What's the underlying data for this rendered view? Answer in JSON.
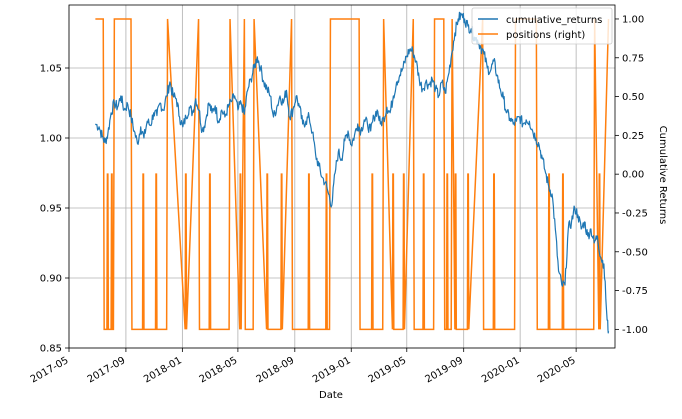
{
  "chart_data": {
    "type": "line",
    "title": "",
    "xlabel": "Date",
    "ylabel_left": "",
    "ylabel_right": "Cumulative Returns",
    "x_ticks": [
      "2017-05",
      "2017-09",
      "2018-01",
      "2018-05",
      "2018-09",
      "2019-01",
      "2019-05",
      "2019-09",
      "2020-01",
      "2020-05"
    ],
    "xlim": [
      "2017-05-01",
      "2020-07-24"
    ],
    "ylim_left": [
      0.85,
      1.095
    ],
    "ylim_right": [
      -1.12,
      1.09
    ],
    "y_ticks_left": [
      "0.85",
      "0.90",
      "0.95",
      "1.00",
      "1.05"
    ],
    "y_ticks_right": [
      "-1.00",
      "-0.75",
      "-0.50",
      "-0.25",
      "0.00",
      "0.25",
      "0.50",
      "0.75",
      "1.00"
    ],
    "grid": true,
    "legend_position": "top-right",
    "colors": {
      "cumulative_returns": "#1f77b4",
      "positions": "#ff7f0e",
      "grid": "#b0b0b0"
    },
    "series": [
      {
        "name": "cumulative_returns",
        "axis": "left",
        "points": [
          [
            "2017-06-27",
            1.01
          ],
          [
            "2017-07-05",
            1.008
          ],
          [
            "2017-07-12",
            1.001
          ],
          [
            "2017-07-18",
            0.997
          ],
          [
            "2017-07-24",
            1.003
          ],
          [
            "2017-07-31",
            1.018
          ],
          [
            "2017-08-07",
            1.025
          ],
          [
            "2017-08-14",
            1.022
          ],
          [
            "2017-08-21",
            1.03
          ],
          [
            "2017-08-28",
            1.02
          ],
          [
            "2017-09-05",
            1.024
          ],
          [
            "2017-09-12",
            1.015
          ],
          [
            "2017-09-19",
            1.005
          ],
          [
            "2017-09-26",
            0.996
          ],
          [
            "2017-10-03",
            1.008
          ],
          [
            "2017-10-10",
            1.0
          ],
          [
            "2017-10-17",
            1.012
          ],
          [
            "2017-10-24",
            1.009
          ],
          [
            "2017-10-31",
            1.018
          ],
          [
            "2017-11-07",
            1.016
          ],
          [
            "2017-11-14",
            1.025
          ],
          [
            "2017-11-21",
            1.02
          ],
          [
            "2017-11-28",
            1.03
          ],
          [
            "2017-12-05",
            1.04
          ],
          [
            "2017-12-12",
            1.03
          ],
          [
            "2017-12-19",
            1.028
          ],
          [
            "2017-12-26",
            1.015
          ],
          [
            "2018-01-02",
            1.008
          ],
          [
            "2018-01-09",
            1.015
          ],
          [
            "2018-01-16",
            1.022
          ],
          [
            "2018-01-23",
            1.018
          ],
          [
            "2018-01-30",
            1.028
          ],
          [
            "2018-02-06",
            1.02
          ],
          [
            "2018-02-13",
            1.005
          ],
          [
            "2018-02-20",
            1.012
          ],
          [
            "2018-02-27",
            1.025
          ],
          [
            "2018-03-06",
            1.018
          ],
          [
            "2018-03-13",
            1.023
          ],
          [
            "2018-03-20",
            1.012
          ],
          [
            "2018-03-27",
            1.02
          ],
          [
            "2018-04-03",
            1.015
          ],
          [
            "2018-04-10",
            1.022
          ],
          [
            "2018-04-17",
            1.026
          ],
          [
            "2018-04-24",
            1.03
          ],
          [
            "2018-05-01",
            1.02
          ],
          [
            "2018-05-08",
            1.025
          ],
          [
            "2018-05-15",
            1.017
          ],
          [
            "2018-05-22",
            1.034
          ],
          [
            "2018-05-29",
            1.042
          ],
          [
            "2018-06-05",
            1.05
          ],
          [
            "2018-06-12",
            1.058
          ],
          [
            "2018-06-19",
            1.05
          ],
          [
            "2018-06-26",
            1.04
          ],
          [
            "2018-07-03",
            1.035
          ],
          [
            "2018-07-10",
            1.03
          ],
          [
            "2018-07-17",
            1.015
          ],
          [
            "2018-07-24",
            1.022
          ],
          [
            "2018-07-31",
            1.03
          ],
          [
            "2018-08-07",
            1.025
          ],
          [
            "2018-08-14",
            1.034
          ],
          [
            "2018-08-21",
            1.015
          ],
          [
            "2018-08-28",
            1.02
          ],
          [
            "2018-09-04",
            1.03
          ],
          [
            "2018-09-11",
            1.022
          ],
          [
            "2018-09-18",
            1.01
          ],
          [
            "2018-09-25",
            1.012
          ],
          [
            "2018-10-02",
            1.015
          ],
          [
            "2018-10-09",
            1.004
          ],
          [
            "2018-10-16",
            0.988
          ],
          [
            "2018-10-23",
            0.98
          ],
          [
            "2018-10-30",
            0.972
          ],
          [
            "2018-11-06",
            0.968
          ],
          [
            "2018-11-13",
            0.96
          ],
          [
            "2018-11-20",
            0.952
          ],
          [
            "2018-11-27",
            0.975
          ],
          [
            "2018-12-04",
            0.99
          ],
          [
            "2018-12-11",
            0.985
          ],
          [
            "2018-12-18",
            0.998
          ],
          [
            "2018-12-25",
            1.005
          ],
          [
            "2019-01-01",
            0.995
          ],
          [
            "2019-01-08",
            1.002
          ],
          [
            "2019-01-15",
            1.01
          ],
          [
            "2019-01-22",
            1.005
          ],
          [
            "2019-01-29",
            1.013
          ],
          [
            "2019-02-05",
            1.01
          ],
          [
            "2019-02-12",
            1.005
          ],
          [
            "2019-02-19",
            1.015
          ],
          [
            "2019-02-26",
            1.02
          ],
          [
            "2019-03-05",
            1.01
          ],
          [
            "2019-03-12",
            1.014
          ],
          [
            "2019-03-19",
            1.022
          ],
          [
            "2019-03-26",
            1.018
          ],
          [
            "2019-04-02",
            1.03
          ],
          [
            "2019-04-09",
            1.04
          ],
          [
            "2019-04-16",
            1.045
          ],
          [
            "2019-04-23",
            1.05
          ],
          [
            "2019-04-30",
            1.058
          ],
          [
            "2019-05-07",
            1.063
          ],
          [
            "2019-05-14",
            1.062
          ],
          [
            "2019-05-21",
            1.055
          ],
          [
            "2019-05-28",
            1.042
          ],
          [
            "2019-06-04",
            1.035
          ],
          [
            "2019-06-11",
            1.04
          ],
          [
            "2019-06-18",
            1.038
          ],
          [
            "2019-06-25",
            1.042
          ],
          [
            "2019-07-02",
            1.035
          ],
          [
            "2019-07-09",
            1.03
          ],
          [
            "2019-07-16",
            1.04
          ],
          [
            "2019-07-23",
            1.032
          ],
          [
            "2019-07-30",
            1.045
          ],
          [
            "2019-08-06",
            1.06
          ],
          [
            "2019-08-13",
            1.075
          ],
          [
            "2019-08-20",
            1.085
          ],
          [
            "2019-08-27",
            1.088
          ],
          [
            "2019-09-03",
            1.085
          ],
          [
            "2019-09-10",
            1.08
          ],
          [
            "2019-09-17",
            1.078
          ],
          [
            "2019-09-24",
            1.072
          ],
          [
            "2019-10-01",
            1.07
          ],
          [
            "2019-10-08",
            1.065
          ],
          [
            "2019-10-15",
            1.06
          ],
          [
            "2019-10-22",
            1.05
          ],
          [
            "2019-10-29",
            1.048
          ],
          [
            "2019-11-05",
            1.055
          ],
          [
            "2019-11-12",
            1.045
          ],
          [
            "2019-11-19",
            1.035
          ],
          [
            "2019-11-26",
            1.028
          ],
          [
            "2019-12-03",
            1.018
          ],
          [
            "2019-12-10",
            1.014
          ],
          [
            "2019-12-17",
            1.01
          ],
          [
            "2019-12-24",
            1.012
          ],
          [
            "2019-12-31",
            1.015
          ],
          [
            "2020-01-07",
            1.01
          ],
          [
            "2020-01-14",
            1.013
          ],
          [
            "2020-01-21",
            1.012
          ],
          [
            "2020-01-28",
            1.005
          ],
          [
            "2020-02-04",
            1.0
          ],
          [
            "2020-02-11",
            0.995
          ],
          [
            "2020-02-18",
            0.985
          ],
          [
            "2020-02-25",
            0.975
          ],
          [
            "2020-03-03",
            0.965
          ],
          [
            "2020-03-10",
            0.96
          ],
          [
            "2020-03-17",
            0.935
          ],
          [
            "2020-03-24",
            0.905
          ],
          [
            "2020-03-31",
            0.895
          ],
          [
            "2020-04-07",
            0.895
          ],
          [
            "2020-04-14",
            0.935
          ],
          [
            "2020-04-21",
            0.94
          ],
          [
            "2020-04-28",
            0.95
          ],
          [
            "2020-05-05",
            0.945
          ],
          [
            "2020-05-12",
            0.935
          ],
          [
            "2020-05-19",
            0.94
          ],
          [
            "2020-05-26",
            0.93
          ],
          [
            "2020-06-02",
            0.935
          ],
          [
            "2020-06-09",
            0.925
          ],
          [
            "2020-06-16",
            0.93
          ],
          [
            "2020-06-23",
            0.915
          ],
          [
            "2020-06-30",
            0.91
          ],
          [
            "2020-07-07",
            0.87
          ],
          [
            "2020-07-10",
            0.862
          ]
        ]
      },
      {
        "name": "positions (right)",
        "axis": "right",
        "points": [
          [
            "2017-06-27",
            1
          ],
          [
            "2017-07-14",
            1
          ],
          [
            "2017-07-16",
            -1
          ],
          [
            "2017-08-05",
            -1
          ],
          [
            "2017-08-07",
            1
          ],
          [
            "2017-09-12",
            1
          ],
          [
            "2017-09-14",
            -1
          ],
          [
            "2017-11-28",
            -1
          ],
          [
            "2017-11-30",
            1
          ],
          [
            "2018-02-05",
            1
          ],
          [
            "2018-02-07",
            -1
          ],
          [
            "2018-04-12",
            -1
          ],
          [
            "2018-04-14",
            1
          ],
          [
            "2018-05-15",
            1
          ],
          [
            "2018-05-17",
            -1
          ],
          [
            "2018-06-03",
            -1
          ],
          [
            "2018-06-05",
            1
          ],
          [
            "2018-08-25",
            1
          ],
          [
            "2018-08-27",
            -1
          ],
          [
            "2018-11-15",
            -1
          ],
          [
            "2018-11-17",
            1
          ],
          [
            "2019-01-18",
            1
          ],
          [
            "2019-01-20",
            -1
          ],
          [
            "2019-03-10",
            -1
          ],
          [
            "2019-03-12",
            1
          ],
          [
            "2019-05-15",
            1
          ],
          [
            "2019-05-17",
            -1
          ],
          [
            "2019-06-28",
            -1
          ],
          [
            "2019-06-30",
            1
          ],
          [
            "2019-07-20",
            1
          ],
          [
            "2019-07-22",
            -1
          ],
          [
            "2019-08-05",
            -1
          ],
          [
            "2019-08-07",
            1
          ],
          [
            "2019-10-12",
            1
          ],
          [
            "2019-10-14",
            -1
          ],
          [
            "2019-12-20",
            -1
          ],
          [
            "2019-12-22",
            1
          ],
          [
            "2020-02-05",
            1
          ],
          [
            "2020-02-07",
            -1
          ],
          [
            "2020-06-08",
            -1
          ],
          [
            "2020-06-10",
            1
          ],
          [
            "2020-07-10",
            1
          ]
        ],
        "spikes_to_zero": [
          "2017-07-23",
          "2017-08-01",
          "2017-10-08",
          "2017-11-05",
          "2018-01-08",
          "2018-03-01",
          "2018-05-06",
          "2018-07-03",
          "2018-08-03",
          "2018-10-01",
          "2018-11-08",
          "2019-02-15",
          "2019-04-01",
          "2019-04-24",
          "2019-06-06",
          "2019-07-27",
          "2019-08-14",
          "2019-09-10",
          "2019-11-05",
          "2020-03-03",
          "2020-04-02",
          "2020-06-20"
        ]
      }
    ]
  }
}
